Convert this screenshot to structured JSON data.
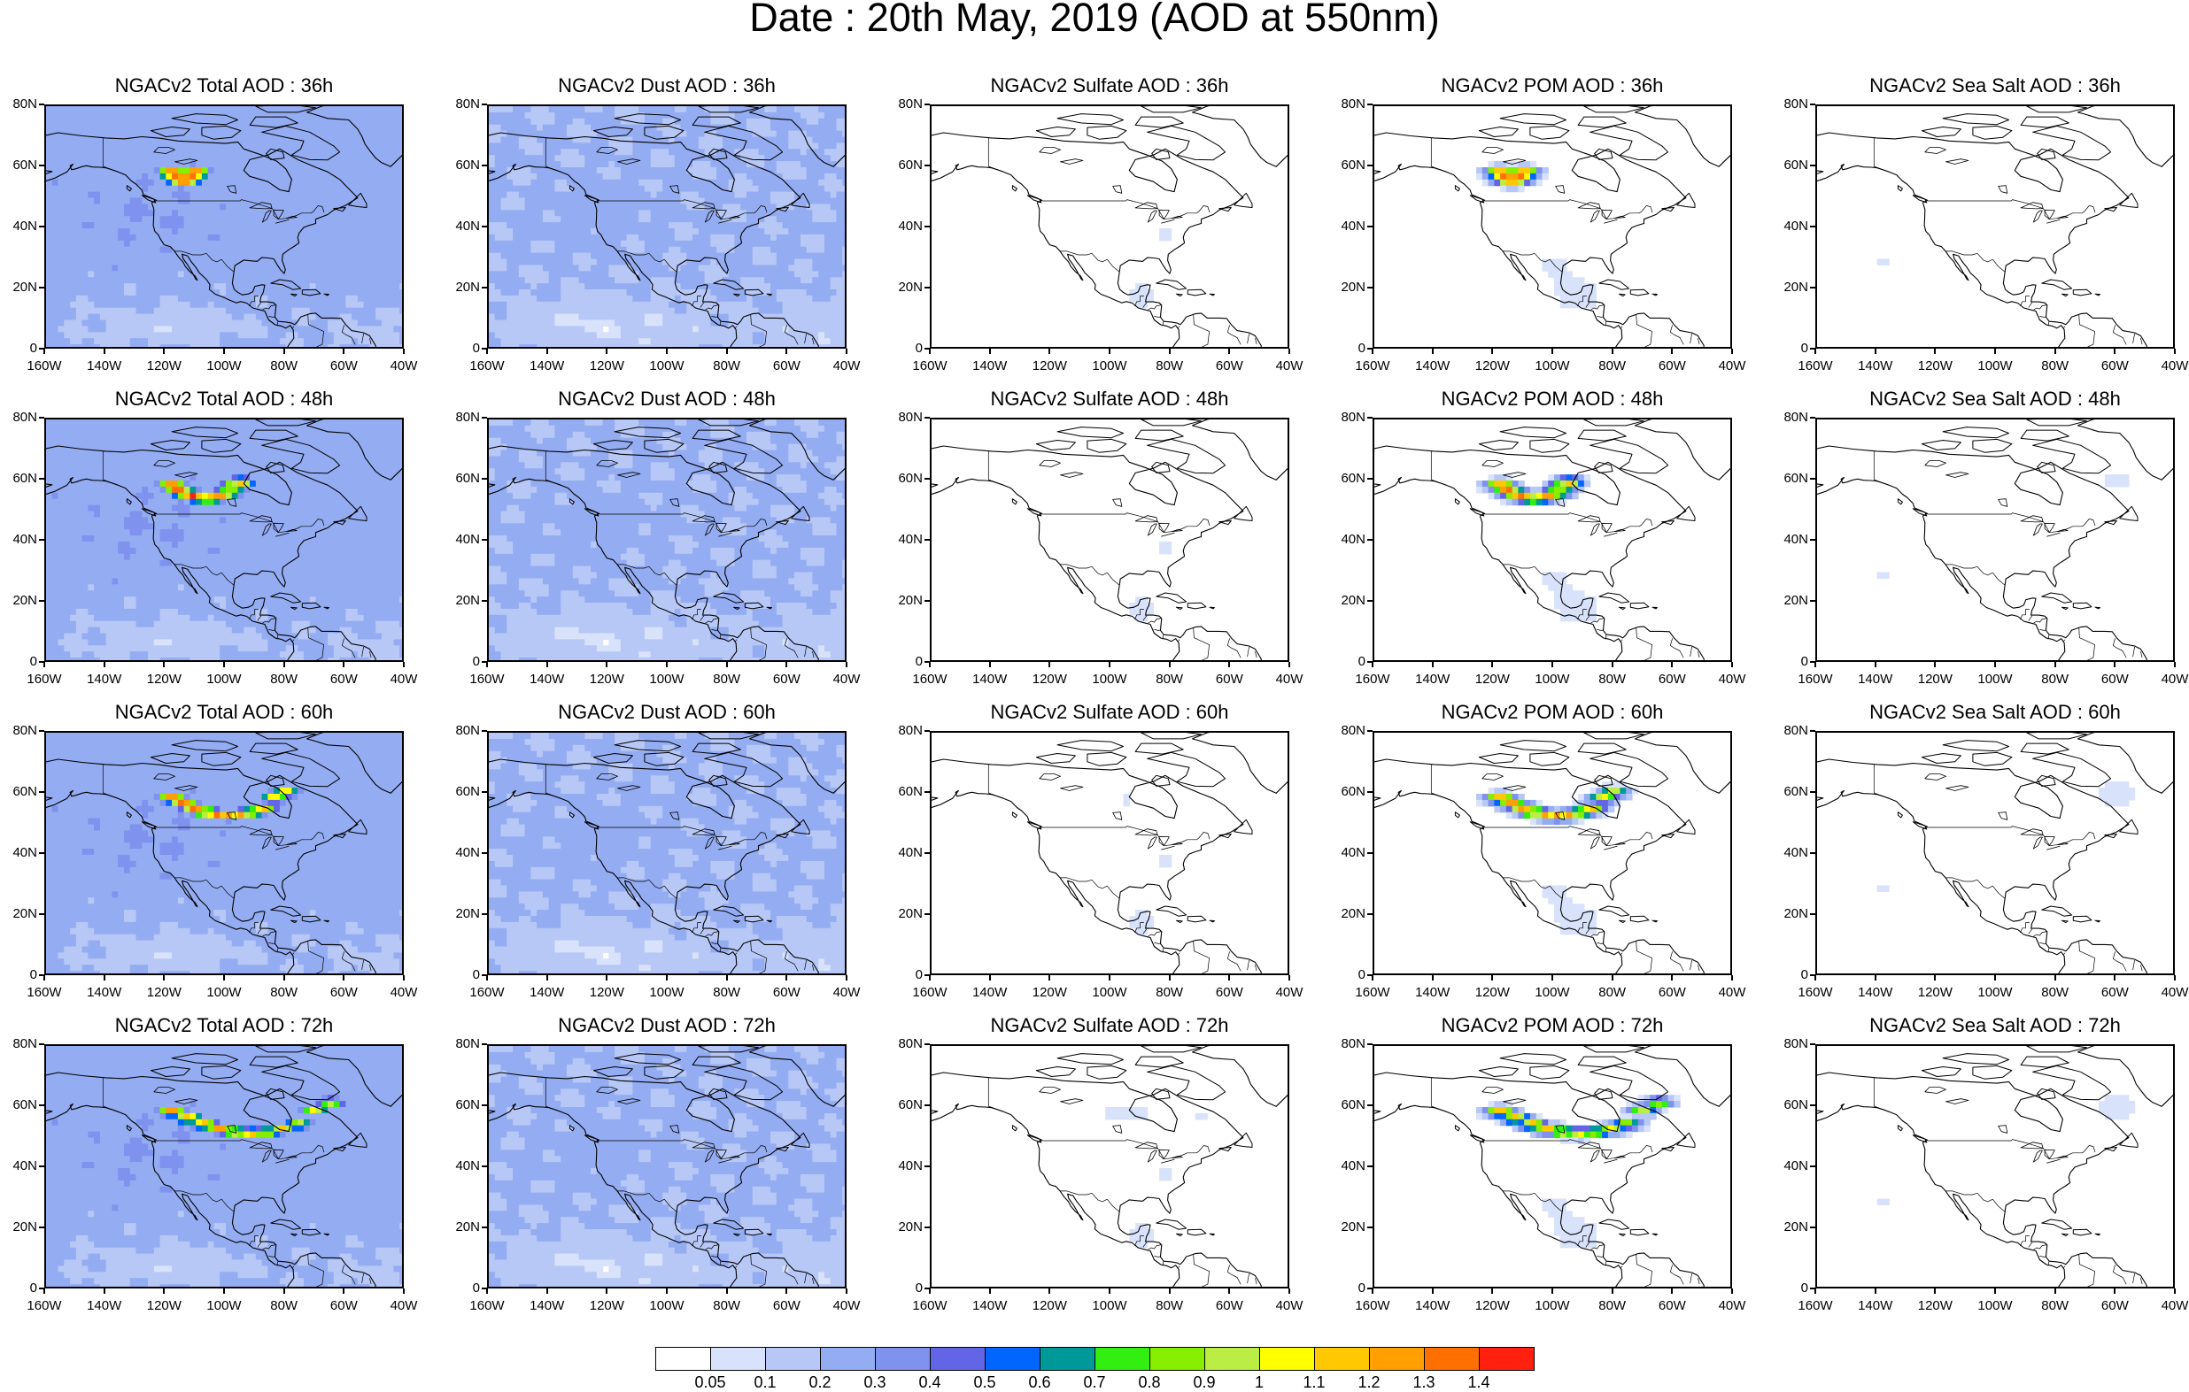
{
  "title": "Date : 20th May, 2019 (AOD at 550nm)",
  "species": [
    {
      "key": "total",
      "label": "Total"
    },
    {
      "key": "dust",
      "label": "Dust"
    },
    {
      "key": "sulfate",
      "label": "Sulfate"
    },
    {
      "key": "pom",
      "label": "POM"
    },
    {
      "key": "seasalt",
      "label": "Sea Salt"
    }
  ],
  "panel_titles": [
    [
      "NGACv2 Total AOD : 36h",
      "NGACv2 Dust AOD : 36h",
      "NGACv2 Sulfate AOD : 36h",
      "NGACv2 POM AOD : 36h",
      "NGACv2 Sea Salt AOD : 36h"
    ],
    [
      "NGACv2 Total AOD : 48h",
      "NGACv2 Dust AOD : 48h",
      "NGACv2 Sulfate AOD : 48h",
      "NGACv2 POM AOD : 48h",
      "NGACv2 Sea Salt AOD : 48h"
    ],
    [
      "NGACv2 Total AOD : 60h",
      "NGACv2 Dust AOD : 60h",
      "NGACv2 Sulfate AOD : 60h",
      "NGACv2 POM AOD : 60h",
      "NGACv2 Sea Salt AOD : 60h"
    ],
    [
      "NGACv2 Total AOD : 72h",
      "NGACv2 Dust AOD : 72h",
      "NGACv2 Sulfate AOD : 72h",
      "NGACv2 POM AOD : 72h",
      "NGACv2 Sea Salt  AOD : 72h"
    ]
  ],
  "lat_ticks": [
    "80N",
    "60N",
    "40N",
    "20N",
    "0"
  ],
  "lon_ticks": [
    "160W",
    "140W",
    "120W",
    "100W",
    "80W",
    "60W",
    "40W"
  ],
  "colorbar": {
    "colors": [
      "#ffffff",
      "#d8e2fb",
      "#b7c8f6",
      "#94acf2",
      "#7e92ee",
      "#6266e6",
      "#0066ff",
      "#009999",
      "#33ee11",
      "#88ee00",
      "#bbee44",
      "#ffff00",
      "#ffc800",
      "#ffa000",
      "#ff7000",
      "#ff2010"
    ],
    "labels": [
      "0.05",
      "0.1",
      "0.2",
      "0.3",
      "0.4",
      "0.5",
      "0.6",
      "0.7",
      "0.8",
      "0.9",
      "1",
      "1.1",
      "1.2",
      "1.3",
      "1.4"
    ]
  }
}
